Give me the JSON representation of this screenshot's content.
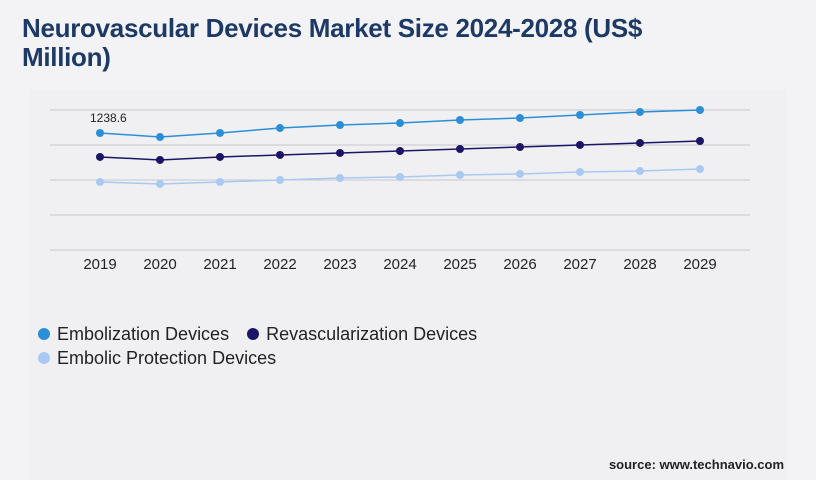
{
  "chart_data": {
    "type": "line",
    "title": "Neurovascular Devices Market Size 2024-2028 (US$ Million)",
    "categories": [
      "2019",
      "2020",
      "2021",
      "2022",
      "2023",
      "2024",
      "2025",
      "2026",
      "2027",
      "2028",
      "2029"
    ],
    "series": [
      {
        "name": "Embolization Devices",
        "color": "#2b8fd8",
        "values": [
          1238.6,
          1196,
          1239,
          1291,
          1323,
          1344,
          1376,
          1397,
          1429,
          1461,
          1482
        ],
        "value_labels": [
          "1238.6",
          null,
          null,
          null,
          null,
          null,
          null,
          null,
          null,
          null,
          null
        ]
      },
      {
        "name": "Revascularization Devices",
        "color": "#1c1566",
        "values": [
          985,
          953,
          985,
          1006,
          1027,
          1048,
          1069,
          1090,
          1112,
          1133,
          1154
        ]
      },
      {
        "name": "Embolic Protection Devices",
        "color": "#a9c9f3",
        "values": [
          720,
          699,
          720,
          741,
          762,
          773,
          794,
          805,
          826,
          836,
          857
        ]
      }
    ],
    "ylim": [
      0,
      1482
    ],
    "grid": true,
    "source": "source: www.technavio.com"
  }
}
